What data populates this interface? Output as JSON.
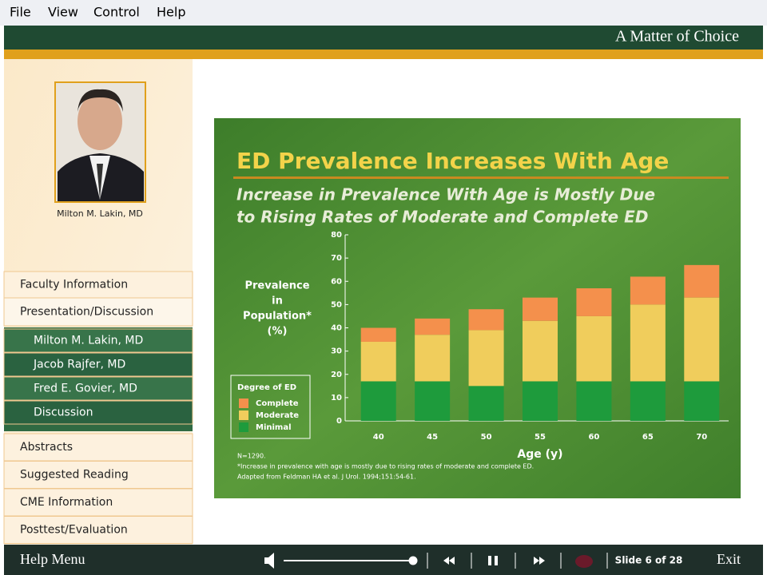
{
  "menu": [
    "File",
    "View",
    "Control",
    "Help"
  ],
  "header": {
    "title": "A Matter of Choice"
  },
  "sidebar": {
    "presenter": "Milton M. Lakin, MD",
    "nav": [
      "Faculty Information",
      "Presentation/Discussion"
    ],
    "subnav": [
      "Milton M. Lakin, MD",
      "Jacob Rajfer, MD",
      "Fred E. Govier, MD",
      "Discussion"
    ],
    "nav_more": [
      "Abstracts",
      "Suggested Reading",
      "CME Information",
      "Posttest/Evaluation"
    ]
  },
  "slide": {
    "subtitle": [
      "Increase in Prevalence With Age is Mostly Due",
      "to Rising Rates of Moderate and Complete ED"
    ],
    "footnotes": [
      "N=1290.",
      "*Increase in prevalence with age is mostly due to rising rates of moderate and complete ED.",
      "Adapted from Feldman HA et al. J Urol. 1994;151:54-61."
    ]
  },
  "chart_data": {
    "type": "stacked_bar",
    "title": "ED Prevalence Increases With Age",
    "ylabel": [
      "Prevalence",
      "in",
      "Population*",
      "(%)"
    ],
    "xlabel": "Age (y)",
    "categories": [
      "40",
      "45",
      "50",
      "55",
      "60",
      "65",
      "70"
    ],
    "series": [
      {
        "name": "Minimal",
        "color": "#1e9b3c",
        "values": [
          17,
          17,
          15,
          17,
          17,
          17,
          17
        ]
      },
      {
        "name": "Moderate",
        "color": "#f0cd5c",
        "values": [
          17,
          20,
          24,
          26,
          28,
          33,
          36
        ]
      },
      {
        "name": "Complete",
        "color": "#f4904c",
        "values": [
          6,
          7,
          9,
          10,
          12,
          12,
          14
        ]
      }
    ],
    "legend_title": "Degree of ED",
    "ylim": [
      0,
      80
    ],
    "yticks": [
      0,
      10,
      20,
      30,
      40,
      50,
      60,
      70,
      80
    ],
    "grid": false
  },
  "footer": {
    "help": "Help Menu",
    "slide": "Slide 6 of 28",
    "exit": "Exit"
  }
}
